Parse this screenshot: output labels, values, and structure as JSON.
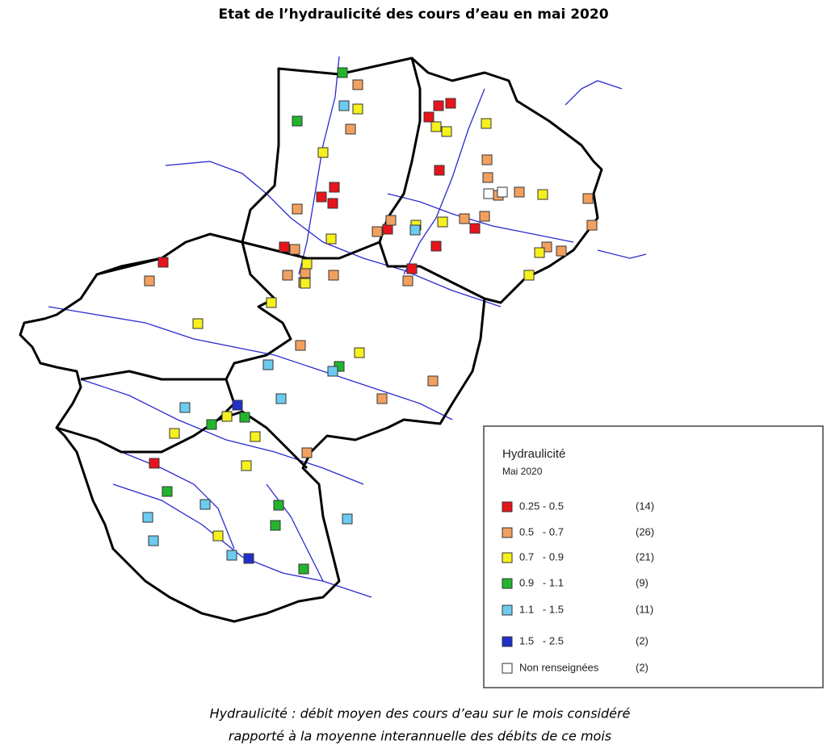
{
  "title": "Etat de l’hydraulicité des cours d’eau en mai 2020",
  "legend": {
    "title": "Hydraulicité",
    "subtitle": "Mai 2020",
    "items": [
      {
        "label": "0.25 - 0.5",
        "count": "(14)",
        "color": "#e8141b"
      },
      {
        "label": "0.5   - 0.7",
        "count": "(26)",
        "color": "#f2a060"
      },
      {
        "label": "0.7   - 0.9",
        "count": "(21)",
        "color": "#f5f01e"
      },
      {
        "label": "0.9   - 1.1",
        "count": "(9)",
        "color": "#22b52c"
      },
      {
        "label": "1.1   - 1.5",
        "count": "(11)",
        "color": "#6ccbf0"
      },
      {
        "label": "1.5   - 2.5",
        "count": "(2)",
        "color": "#2030c8"
      },
      {
        "label": "Non renseignées",
        "count": "(2)",
        "color": "#ffffff"
      }
    ]
  },
  "caption": [
    "Hydraulicité : débit moyen des cours d’eau sur le mois considéré",
    "rapporté à la moyenne interannuelle des débits de ce mois"
  ]
}
